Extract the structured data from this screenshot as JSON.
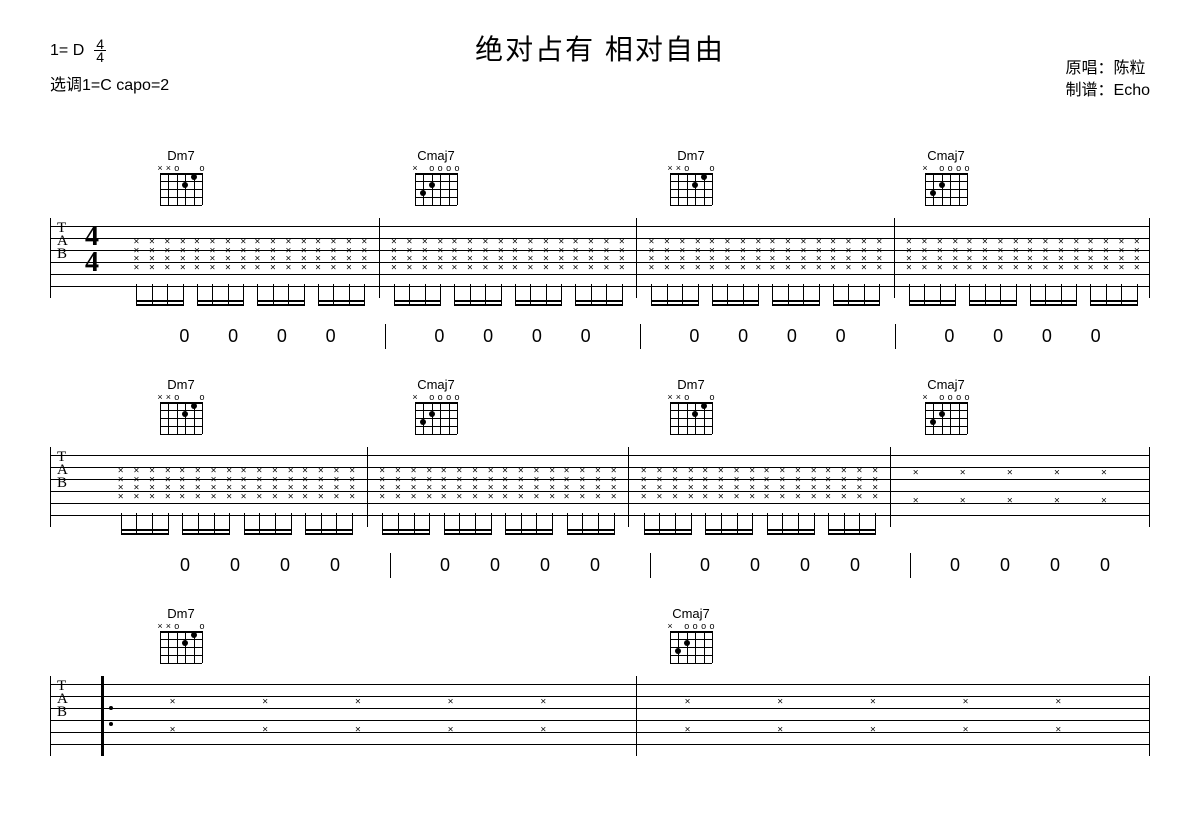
{
  "title": "绝对占有 相对自由",
  "key_info": {
    "key": "1= D",
    "ts_top": "4",
    "ts_bot": "4",
    "line2": "选调1=C capo=2"
  },
  "credits": {
    "singer_label": "原唱：",
    "singer": "陈粒",
    "arranger_label": "制谱：",
    "arranger": "Echo"
  },
  "chords": {
    "dm7": {
      "name": "Dm7",
      "marks": [
        {
          "s": 0,
          "m": "×"
        },
        {
          "s": 1,
          "m": "×"
        },
        {
          "s": 2,
          "m": "o"
        },
        {
          "s": 5,
          "m": "o"
        }
      ],
      "dots": [
        {
          "s": 3,
          "f": 2
        },
        {
          "s": 4,
          "f": 1
        }
      ]
    },
    "cmaj7": {
      "name": "Cmaj7",
      "marks": [
        {
          "s": 0,
          "m": "×"
        },
        {
          "s": 2,
          "m": "o"
        },
        {
          "s": 3,
          "m": "o"
        },
        {
          "s": 4,
          "m": "o"
        },
        {
          "s": 5,
          "m": "o"
        }
      ],
      "dots": [
        {
          "s": 1,
          "f": 3
        },
        {
          "s": 2,
          "f": 2
        }
      ]
    }
  },
  "systems": [
    {
      "chord_seq": [
        "dm7",
        "cmaj7",
        "dm7",
        "cmaj7"
      ],
      "show_timesig": true,
      "bars": 4,
      "pattern": "full",
      "numbers": [
        [
          "0",
          "0",
          "0",
          "0"
        ],
        [
          "0",
          "0",
          "0",
          "0"
        ],
        [
          "0",
          "0",
          "0",
          "0"
        ],
        [
          "0",
          "0",
          "0",
          "0"
        ]
      ]
    },
    {
      "chord_seq": [
        "dm7",
        "cmaj7",
        "dm7",
        "cmaj7"
      ],
      "show_timesig": false,
      "bars": 4,
      "pattern": "full3sparse1",
      "numbers": [
        [
          "0",
          "0",
          "0",
          "0"
        ],
        [
          "0",
          "0",
          "0",
          "0"
        ],
        [
          "0",
          "0",
          "0",
          "0"
        ],
        [
          "0",
          "0",
          "0",
          "0"
        ]
      ]
    },
    {
      "chord_seq": [
        "dm7",
        "cmaj7"
      ],
      "show_timesig": false,
      "bars": 2,
      "pattern": "sparse",
      "repeat_start": true,
      "numbers": null
    }
  ],
  "colors": {
    "fg": "#000000",
    "bg": "#ffffff"
  }
}
